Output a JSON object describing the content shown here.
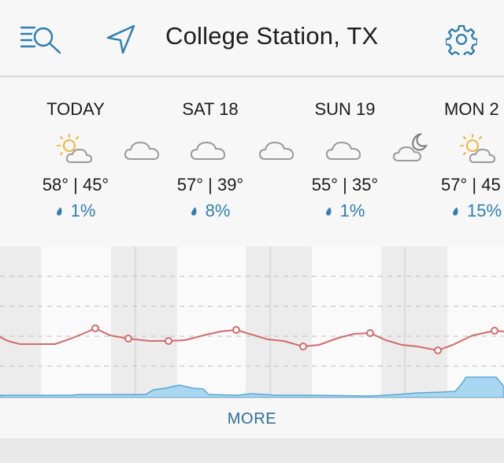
{
  "header": {
    "city": "College Station, TX",
    "icons": [
      "search-list-icon",
      "location-arrow-icon",
      "settings-gear-icon"
    ]
  },
  "days": [
    {
      "name": "TODAY",
      "temps": "58° | 45°",
      "precip": "1%",
      "day_icon": "partly-sunny-icon",
      "night_icon": "cloudy-night-icon"
    },
    {
      "name": "SAT 18",
      "temps": "57° | 39°",
      "precip": "8%",
      "day_icon": "cloudy-icon",
      "night_icon": "cloudy-night-icon"
    },
    {
      "name": "SUN 19",
      "temps": "55° | 35°",
      "precip": "1%",
      "day_icon": "cloudy-icon",
      "night_icon": "cloudy-moon-icon"
    },
    {
      "name": "MON 2",
      "temps": "57° | 45",
      "precip": "15%",
      "day_icon": "partly-sunny-icon",
      "night_icon": ""
    }
  ],
  "colors": {
    "accent": "#2a6f96",
    "precip_text": "#2f7fb3",
    "temperature_line": "#d46a6a",
    "precip_fill": "#a9d6f0"
  },
  "more_label": "MORE"
}
